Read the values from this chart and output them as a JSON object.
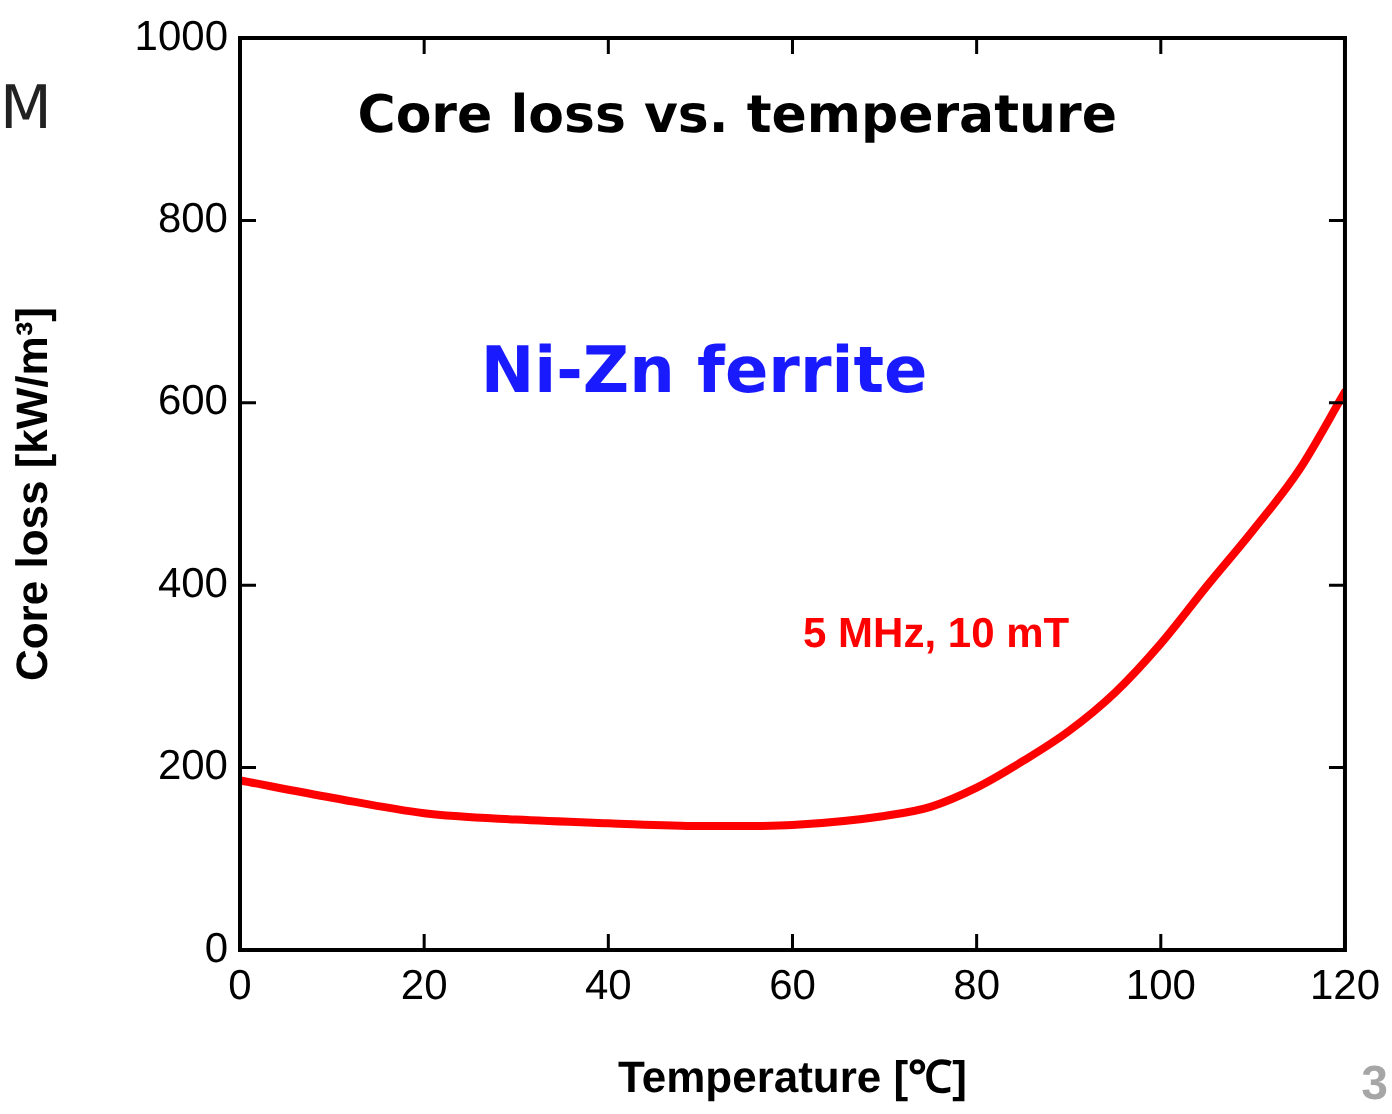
{
  "chart_data": {
    "type": "line",
    "title": "Core loss vs. temperature",
    "xlabel": "Temperature [℃]",
    "ylabel": "Core loss [kW/m³]",
    "annotations": [
      "Ni-Zn ferrite",
      "M",
      "3"
    ],
    "x": [
      0,
      10,
      20,
      30,
      40,
      50,
      55,
      60,
      70,
      75,
      80,
      85,
      90,
      95,
      100,
      105,
      110,
      115,
      120
    ],
    "series": [
      {
        "name": "5 MHz, 10 mT",
        "color": "#ff0000",
        "values": [
          186,
          167,
          150,
          143,
          139,
          136,
          136,
          137,
          147,
          157,
          178,
          207,
          240,
          282,
          336,
          399,
          460,
          526,
          612
        ]
      }
    ],
    "xlim": [
      0,
      120
    ],
    "xticks": [
      0,
      20,
      40,
      60,
      80,
      100,
      120
    ],
    "ylim": [
      0,
      1000
    ],
    "yticks": [
      0,
      200,
      400,
      600,
      800,
      1000
    ],
    "grid": false,
    "legend": false,
    "marker": "none",
    "line_style": "solid"
  }
}
